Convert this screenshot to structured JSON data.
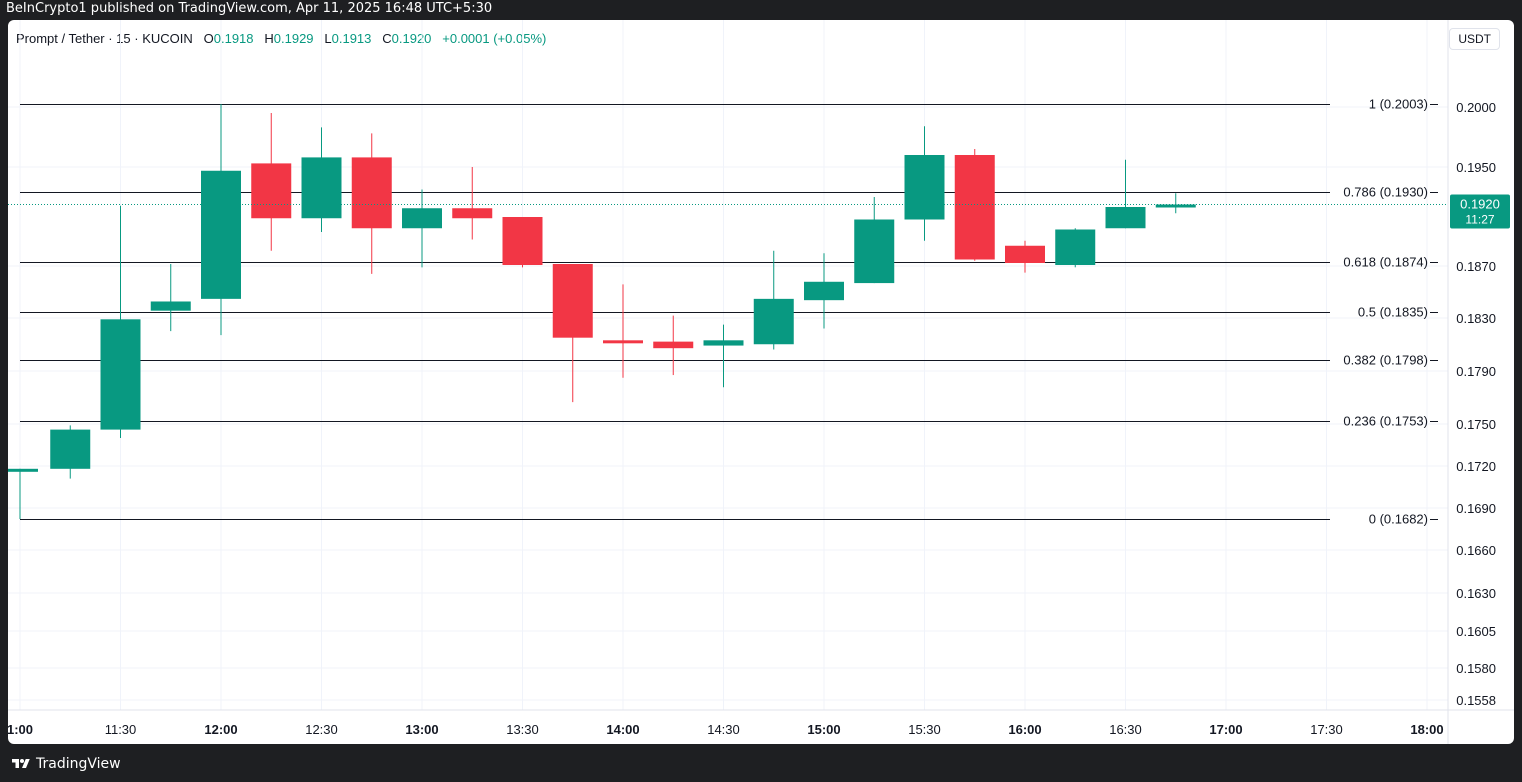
{
  "header": {
    "published": "BeInCrypto1 published on TradingView.com, Apr 11, 2025 16:48 UTC+5:30"
  },
  "legend": {
    "symbol": "Prompt / Tether · 15 · KUCOIN",
    "o_label": "O",
    "o_value": "0.1918",
    "h_label": "H",
    "h_value": "0.1929",
    "l_label": "L",
    "l_value": "0.1913",
    "c_label": "C",
    "c_value": "0.1920",
    "change": "+0.0001 (+0.05%)"
  },
  "unit_label": "USDT",
  "footer": {
    "brand": "TradingView"
  },
  "colors": {
    "up": "#089981",
    "down": "#f23645",
    "fib_line": "#131722",
    "grid": "#f0f3fa",
    "price_line": "#089981"
  },
  "chart_data": {
    "type": "candlestick",
    "interval": "15",
    "current_price": {
      "value": "0.1920",
      "countdown": "11:27"
    },
    "y_ticks": [
      "0.2000",
      "0.1950",
      "0.1870",
      "0.1830",
      "0.1790",
      "0.1750",
      "0.1720",
      "0.1690",
      "0.1660",
      "0.1630",
      "0.1605",
      "0.1580",
      "0.1558"
    ],
    "x_ticks": [
      {
        "label": "1:00",
        "bold": true
      },
      {
        "label": "11:30",
        "bold": false
      },
      {
        "label": "12:00",
        "bold": true
      },
      {
        "label": "12:30",
        "bold": false
      },
      {
        "label": "13:00",
        "bold": true
      },
      {
        "label": "13:30",
        "bold": false
      },
      {
        "label": "14:00",
        "bold": true
      },
      {
        "label": "14:30",
        "bold": false
      },
      {
        "label": "15:00",
        "bold": true
      },
      {
        "label": "15:30",
        "bold": false
      },
      {
        "label": "16:00",
        "bold": true
      },
      {
        "label": "16:30",
        "bold": false
      },
      {
        "label": "17:00",
        "bold": true
      },
      {
        "label": "17:30",
        "bold": false
      },
      {
        "label": "18:00",
        "bold": true
      }
    ],
    "fib_levels": [
      {
        "label": "1 (0.2003)",
        "value": 0.2003
      },
      {
        "label": "0.786 (0.1930)",
        "value": 0.193
      },
      {
        "label": "0.618 (0.1874)",
        "value": 0.1874
      },
      {
        "label": "0.5 (0.1835)",
        "value": 0.1835
      },
      {
        "label": "0.382 (0.1798)",
        "value": 0.1798
      },
      {
        "label": "0.236 (0.1753)",
        "value": 0.1753
      },
      {
        "label": "0 (0.1682)",
        "value": 0.1682
      }
    ],
    "candles": [
      {
        "time": "11:00",
        "o": 0.1718,
        "h": 0.1718,
        "l": 0.1682,
        "c": 0.1718
      },
      {
        "time": "11:15",
        "o": 0.1718,
        "h": 0.1749,
        "l": 0.1711,
        "c": 0.1746
      },
      {
        "time": "11:30",
        "o": 0.1746,
        "h": 0.1919,
        "l": 0.174,
        "c": 0.1829
      },
      {
        "time": "11:45",
        "o": 0.1836,
        "h": 0.1872,
        "l": 0.182,
        "c": 0.1843
      },
      {
        "time": "12:00",
        "o": 0.1845,
        "h": 0.2003,
        "l": 0.1817,
        "c": 0.1947
      },
      {
        "time": "12:15",
        "o": 0.1953,
        "h": 0.1995,
        "l": 0.1883,
        "c": 0.1909
      },
      {
        "time": "12:30",
        "o": 0.1909,
        "h": 0.1983,
        "l": 0.1898,
        "c": 0.1958
      },
      {
        "time": "12:45",
        "o": 0.1958,
        "h": 0.1978,
        "l": 0.1864,
        "c": 0.1901
      },
      {
        "time": "13:00",
        "o": 0.1901,
        "h": 0.1932,
        "l": 0.1869,
        "c": 0.1917
      },
      {
        "time": "13:15",
        "o": 0.1917,
        "h": 0.195,
        "l": 0.1892,
        "c": 0.1909
      },
      {
        "time": "13:30",
        "o": 0.191,
        "h": 0.191,
        "l": 0.1869,
        "c": 0.1871
      },
      {
        "time": "13:45",
        "o": 0.1872,
        "h": 0.1872,
        "l": 0.1767,
        "c": 0.1815
      },
      {
        "time": "14:00",
        "o": 0.1813,
        "h": 0.1856,
        "l": 0.1785,
        "c": 0.1811
      },
      {
        "time": "14:15",
        "o": 0.1812,
        "h": 0.1832,
        "l": 0.1787,
        "c": 0.1807
      },
      {
        "time": "14:30",
        "o": 0.1809,
        "h": 0.1825,
        "l": 0.1778,
        "c": 0.1813
      },
      {
        "time": "14:45",
        "o": 0.181,
        "h": 0.1883,
        "l": 0.1806,
        "c": 0.1845
      },
      {
        "time": "15:00",
        "o": 0.1844,
        "h": 0.1881,
        "l": 0.1822,
        "c": 0.1858
      },
      {
        "time": "15:15",
        "o": 0.1857,
        "h": 0.1926,
        "l": 0.1857,
        "c": 0.1908
      },
      {
        "time": "15:30",
        "o": 0.1908,
        "h": 0.1984,
        "l": 0.1891,
        "c": 0.196
      },
      {
        "time": "15:45",
        "o": 0.196,
        "h": 0.1965,
        "l": 0.1875,
        "c": 0.1876
      },
      {
        "time": "16:00",
        "o": 0.1887,
        "h": 0.1891,
        "l": 0.1865,
        "c": 0.1873
      },
      {
        "time": "16:15",
        "o": 0.1871,
        "h": 0.1901,
        "l": 0.1869,
        "c": 0.19
      },
      {
        "time": "16:30",
        "o": 0.1901,
        "h": 0.1956,
        "l": 0.1901,
        "c": 0.1918
      },
      {
        "time": "16:45",
        "o": 0.1918,
        "h": 0.1929,
        "l": 0.1913,
        "c": 0.192
      }
    ]
  }
}
